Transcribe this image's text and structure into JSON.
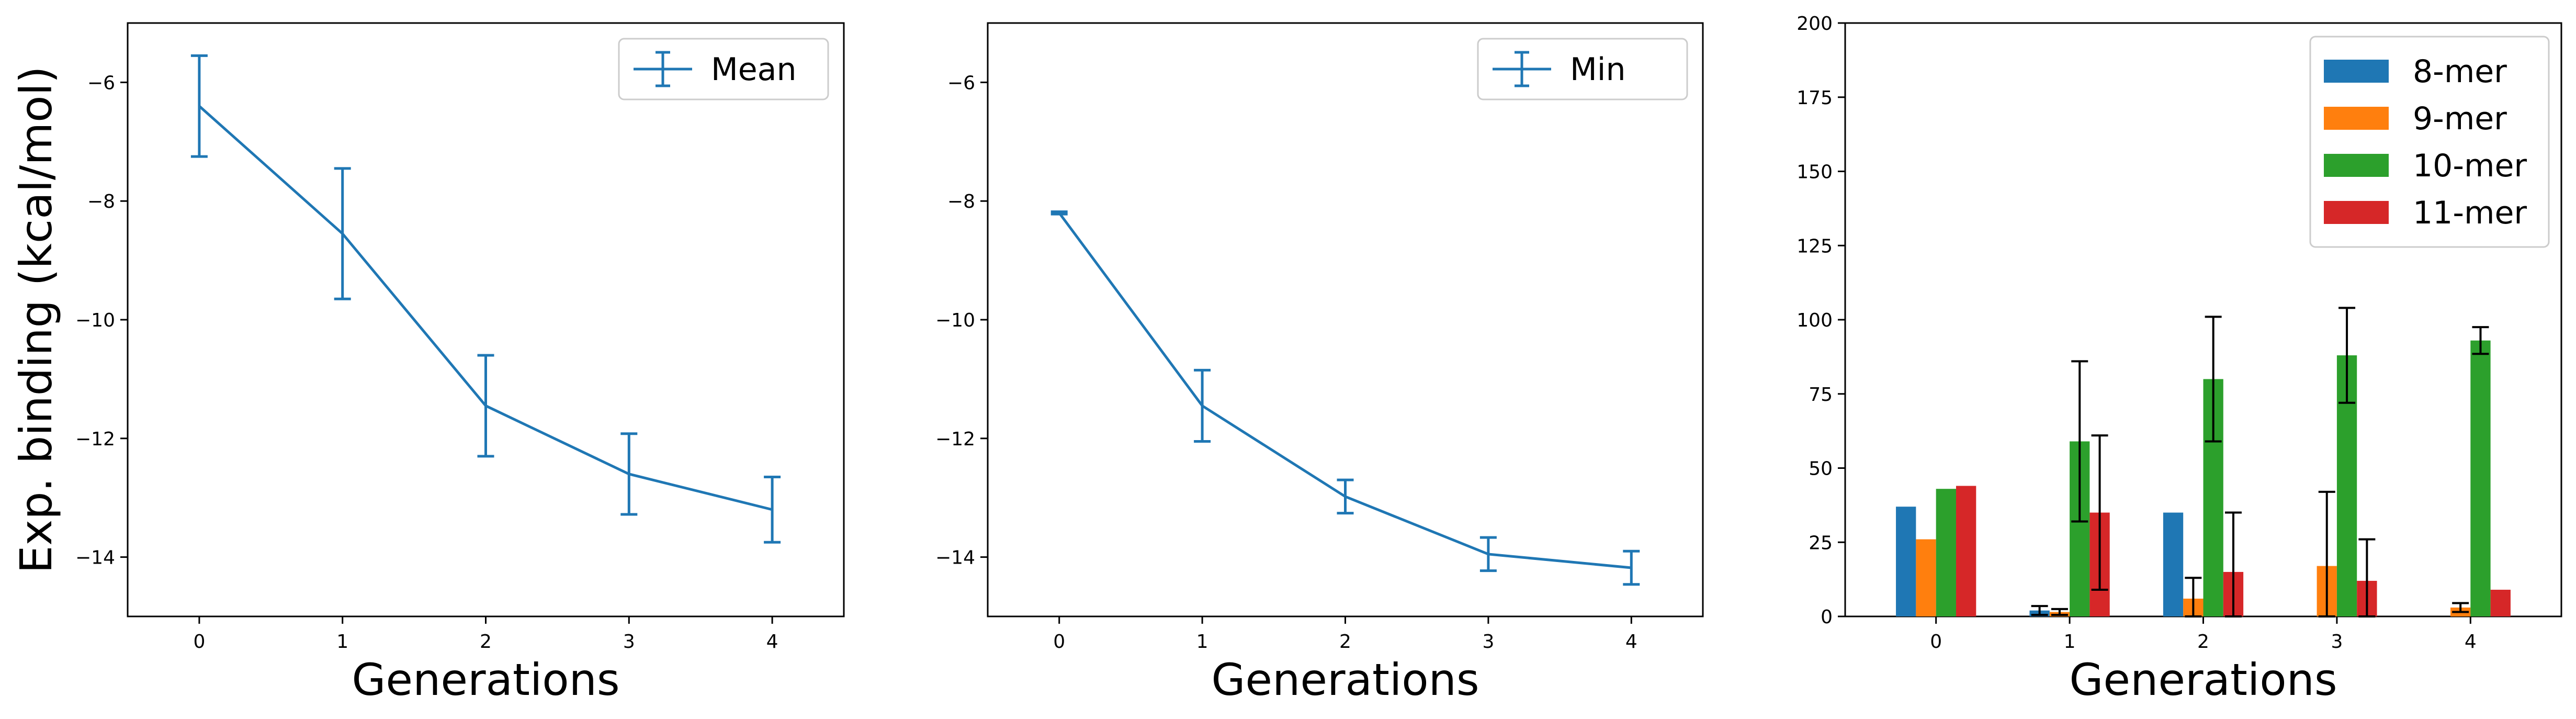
{
  "colors": {
    "blue": "#1f77b4",
    "orange": "#ff7f0e",
    "green": "#2ca02c",
    "red": "#d62728",
    "error_bar": "#000000",
    "legend_border": "#cccccc"
  },
  "chart_data": [
    {
      "type": "line",
      "title": "",
      "xlabel": "Generations",
      "ylabel": "Exp. binding (kcal/mol)",
      "xlim": [
        -0.5,
        4.5
      ],
      "ylim": [
        -15,
        -5
      ],
      "xticks": [
        0,
        1,
        2,
        3,
        4
      ],
      "yticks": [
        -14,
        -12,
        -10,
        -8,
        -6
      ],
      "grid": false,
      "legend_position": "top-right",
      "series": [
        {
          "name": "Mean",
          "color": "#1f77b4",
          "x": [
            0,
            1,
            2,
            3,
            4
          ],
          "y": [
            -6.4,
            -8.55,
            -11.45,
            -12.6,
            -13.2
          ],
          "yerr": [
            0.85,
            1.1,
            0.85,
            0.68,
            0.55
          ]
        }
      ]
    },
    {
      "type": "line",
      "title": "",
      "xlabel": "Generations",
      "ylabel": "",
      "xlim": [
        -0.5,
        4.5
      ],
      "ylim": [
        -15,
        -5
      ],
      "xticks": [
        0,
        1,
        2,
        3,
        4
      ],
      "yticks": [
        -14,
        -12,
        -10,
        -8,
        -6
      ],
      "grid": false,
      "legend_position": "top-right",
      "series": [
        {
          "name": "Min",
          "color": "#1f77b4",
          "x": [
            0,
            1,
            2,
            3,
            4
          ],
          "y": [
            -8.2,
            -11.45,
            -12.98,
            -13.95,
            -14.18
          ],
          "yerr": [
            0.02,
            0.6,
            0.28,
            0.28,
            0.28
          ]
        }
      ]
    },
    {
      "type": "bar",
      "title": "",
      "xlabel": "Generations",
      "ylabel": "",
      "categories": [
        "0",
        "1",
        "2",
        "3",
        "4"
      ],
      "ylim": [
        0,
        200
      ],
      "yticks": [
        0,
        25,
        50,
        75,
        100,
        125,
        150,
        175,
        200
      ],
      "grid": false,
      "legend_position": "top-right",
      "series": [
        {
          "name": "8-mer",
          "color": "#1f77b4",
          "values": [
            37,
            2,
            35,
            0,
            0
          ],
          "yerr": [
            0,
            1.5,
            0,
            0,
            0
          ]
        },
        {
          "name": "9-mer",
          "color": "#ff7f0e",
          "values": [
            26,
            1.5,
            6,
            17,
            3
          ],
          "yerr": [
            0,
            1,
            7,
            25,
            1.5
          ]
        },
        {
          "name": "10-mer",
          "color": "#2ca02c",
          "values": [
            43,
            59,
            80,
            88,
            93
          ],
          "yerr": [
            0,
            27,
            21,
            16,
            4.5
          ]
        },
        {
          "name": "11-mer",
          "color": "#d62728",
          "values": [
            44,
            35,
            15,
            12,
            9
          ],
          "yerr": [
            0,
            26,
            20,
            14,
            0
          ]
        }
      ]
    }
  ]
}
